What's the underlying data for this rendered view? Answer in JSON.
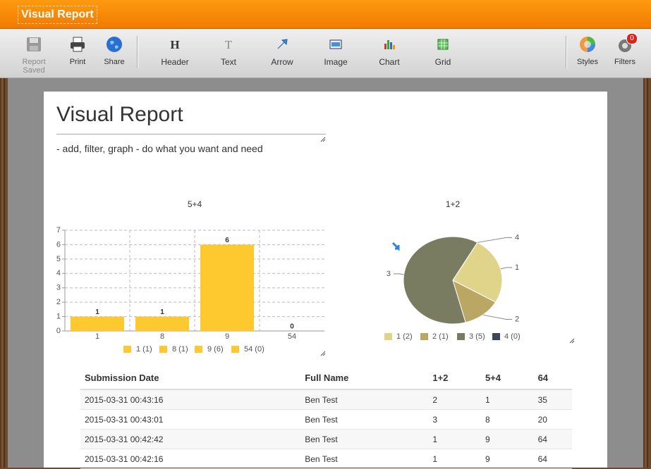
{
  "header": {
    "title": "Visual Report"
  },
  "toolbar": {
    "buttons": [
      {
        "label": "Report Saved"
      },
      {
        "label": "Print"
      },
      {
        "label": "Share"
      },
      {
        "label": "Header"
      },
      {
        "label": "Text"
      },
      {
        "label": "Arrow"
      },
      {
        "label": "Image"
      },
      {
        "label": "Chart"
      },
      {
        "label": "Grid"
      },
      {
        "label": "Styles"
      },
      {
        "label": "Filters",
        "badge": 0
      }
    ]
  },
  "report": {
    "title": "Visual Report",
    "subtitle": "- add, filter, graph - do what you want and need"
  },
  "charts": [
    {
      "type": "bar",
      "title": "5+4",
      "categories": [
        "1",
        "8",
        "9",
        "54"
      ],
      "values": [
        1,
        1,
        6,
        0
      ],
      "legend_labels": [
        "1 (1)",
        "8 (1)",
        "9 (6)",
        "54 (0)"
      ],
      "color": "#fdc92f",
      "ylim": [
        0,
        7
      ],
      "yticks": [
        0,
        1,
        2,
        3,
        4,
        5,
        6,
        7
      ],
      "grid": true
    },
    {
      "type": "pie",
      "title": "1+2",
      "categories": [
        "1",
        "2",
        "3",
        "4"
      ],
      "values": [
        2,
        1,
        5,
        0
      ],
      "legend_labels": [
        "1 (2)",
        "2 (1)",
        "3 (5)",
        "4 (0)"
      ],
      "colors": [
        "#e0d48a",
        "#bba764",
        "#797c61",
        "#3b4757"
      ]
    }
  ],
  "table": {
    "columns": [
      "Submission Date",
      "Full Name",
      "1+2",
      "5+4",
      "64"
    ],
    "rows": [
      [
        "2015-03-31 00:43:16",
        "Ben Test",
        2,
        1,
        35
      ],
      [
        "2015-03-31 00:43:01",
        "Ben Test",
        3,
        8,
        20
      ],
      [
        "2015-03-31 00:42:42",
        "Ben Test",
        1,
        9,
        64
      ],
      [
        "2015-03-31 00:42:16",
        "Ben Test",
        1,
        9,
        64
      ]
    ]
  }
}
